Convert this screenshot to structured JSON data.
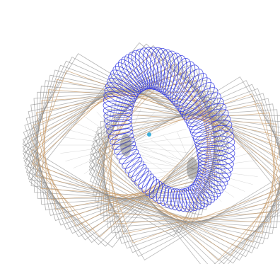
{
  "scene": {
    "colors": {
      "background": "#ffffff",
      "torus_coils": "#2f35e0",
      "grid_gray": "#8a8a8a",
      "grid_orange": "#c79b6a",
      "dense_core": "#6f6f6f",
      "small_marker": "#2aa6d6"
    },
    "objects": [
      {
        "name": "torus-coil-mesh"
      },
      {
        "name": "rotated-gray-wire-grid"
      },
      {
        "name": "rotated-orange-wire-grid"
      },
      {
        "name": "left-dense-intersection-node"
      },
      {
        "name": "right-dense-intersection-node"
      },
      {
        "name": "center-marker"
      }
    ]
  }
}
